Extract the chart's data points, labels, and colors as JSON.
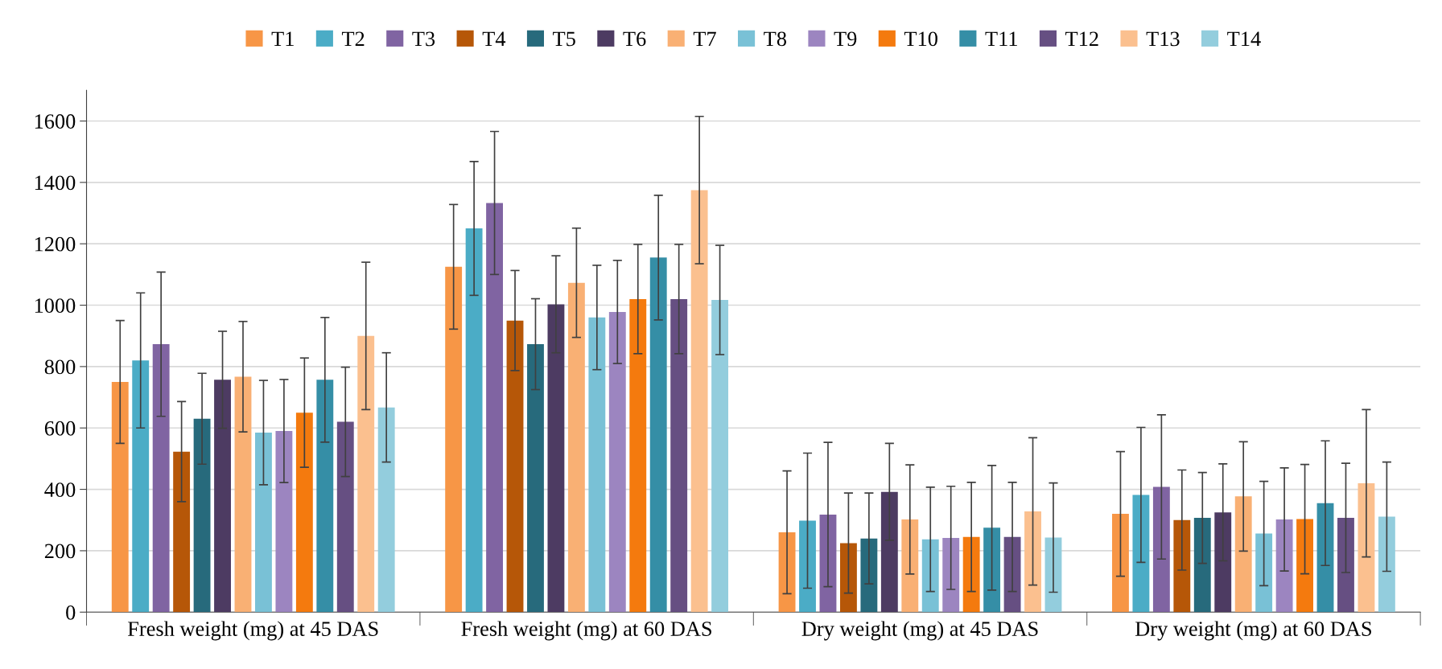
{
  "chart_data": {
    "type": "bar",
    "categories": [
      "Fresh weight (mg) at 45 DAS",
      "Fresh weight (mg) at 60 DAS",
      "Dry weight (mg) at 45 DAS",
      "Dry weight (mg) at 60 DAS"
    ],
    "series": [
      {
        "name": "T1",
        "color": "#f79646",
        "values": [
          750,
          1125,
          260,
          320
        ],
        "errors": [
          200,
          203,
          200,
          203
        ]
      },
      {
        "name": "T2",
        "color": "#4bacc6",
        "values": [
          820,
          1250,
          298,
          382
        ],
        "errors": [
          220,
          218,
          220,
          220
        ]
      },
      {
        "name": "T3",
        "color": "#8064a2",
        "values": [
          873,
          1333,
          318,
          408
        ],
        "errors": [
          235,
          233,
          235,
          235
        ]
      },
      {
        "name": "T4",
        "color": "#b65708",
        "values": [
          523,
          950,
          225,
          300
        ],
        "errors": [
          163,
          163,
          163,
          163
        ]
      },
      {
        "name": "T5",
        "color": "#276a7c",
        "values": [
          630,
          873,
          240,
          307
        ],
        "errors": [
          148,
          148,
          148,
          148
        ]
      },
      {
        "name": "T6",
        "color": "#4d3b62",
        "values": [
          757,
          1003,
          392,
          325
        ],
        "errors": [
          158,
          158,
          158,
          158
        ]
      },
      {
        "name": "T7",
        "color": "#f9b074",
        "values": [
          767,
          1073,
          302,
          377
        ],
        "errors": [
          180,
          178,
          178,
          178
        ]
      },
      {
        "name": "T8",
        "color": "#79c1d6",
        "values": [
          585,
          960,
          237,
          256
        ],
        "errors": [
          170,
          170,
          170,
          170
        ]
      },
      {
        "name": "T9",
        "color": "#9c85c0",
        "values": [
          590,
          978,
          242,
          302
        ],
        "errors": [
          168,
          168,
          168,
          168
        ]
      },
      {
        "name": "T10",
        "color": "#f47a0e",
        "values": [
          650,
          1020,
          245,
          303
        ],
        "errors": [
          178,
          178,
          178,
          178
        ]
      },
      {
        "name": "T11",
        "color": "#358ea6",
        "values": [
          757,
          1155,
          275,
          355
        ],
        "errors": [
          203,
          203,
          203,
          203
        ]
      },
      {
        "name": "T12",
        "color": "#664f82",
        "values": [
          620,
          1020,
          245,
          307
        ],
        "errors": [
          178,
          178,
          178,
          178
        ]
      },
      {
        "name": "T13",
        "color": "#fbc08f",
        "values": [
          900,
          1375,
          328,
          420
        ],
        "errors": [
          240,
          240,
          240,
          240
        ]
      },
      {
        "name": "T14",
        "color": "#93cddd",
        "values": [
          667,
          1017,
          243,
          311
        ],
        "errors": [
          178,
          178,
          178,
          178
        ]
      }
    ],
    "ylim": [
      0,
      1700
    ],
    "yticks": [
      0,
      200,
      400,
      600,
      800,
      1000,
      1200,
      1400,
      1600
    ],
    "grid": "y",
    "legend": "top"
  }
}
